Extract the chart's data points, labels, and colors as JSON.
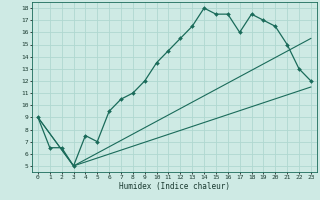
{
  "xlabel": "Humidex (Indice chaleur)",
  "bg_color": "#ceeae4",
  "grid_color": "#b0d8d0",
  "line_color": "#1a6b5a",
  "xlim": [
    -0.5,
    23.5
  ],
  "ylim": [
    4.5,
    18.5
  ],
  "xticks": [
    0,
    1,
    2,
    3,
    4,
    5,
    6,
    7,
    8,
    9,
    10,
    11,
    12,
    13,
    14,
    15,
    16,
    17,
    18,
    19,
    20,
    21,
    22,
    23
  ],
  "yticks": [
    5,
    6,
    7,
    8,
    9,
    10,
    11,
    12,
    13,
    14,
    15,
    16,
    17,
    18
  ],
  "line1_x": [
    0,
    1,
    2,
    3,
    4,
    5,
    6,
    7,
    8,
    9,
    10,
    11,
    12,
    13,
    14,
    15,
    16,
    17,
    18,
    19,
    20,
    21,
    22,
    23
  ],
  "line1_y": [
    9.0,
    6.5,
    6.5,
    5.0,
    7.5,
    7.0,
    9.5,
    10.5,
    11.0,
    12.0,
    13.5,
    14.5,
    15.5,
    16.5,
    18.0,
    17.5,
    17.5,
    16.0,
    17.5,
    17.0,
    16.5,
    15.0,
    13.0,
    12.0
  ],
  "line2_x": [
    0,
    3,
    23
  ],
  "line2_y": [
    9.0,
    5.0,
    11.5
  ],
  "line3_x": [
    0,
    3,
    23
  ],
  "line3_y": [
    9.0,
    5.0,
    15.5
  ]
}
